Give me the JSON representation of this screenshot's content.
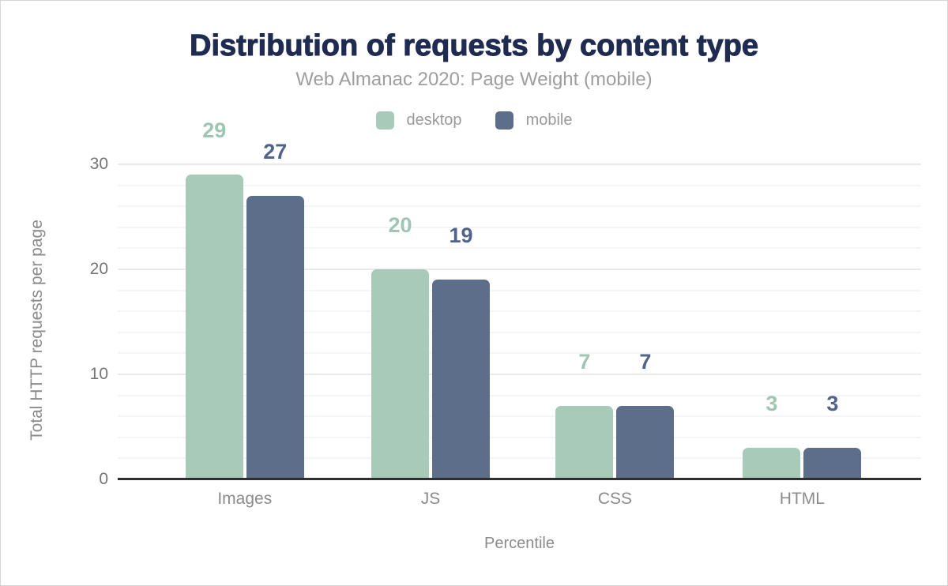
{
  "chart_data": {
    "type": "bar",
    "title": "Distribution of requests by content type",
    "subtitle": "Web Almanac 2020: Page Weight (mobile)",
    "xlabel": "Percentile",
    "ylabel": "Total HTTP requests per page",
    "categories": [
      "Images",
      "JS",
      "CSS",
      "HTML"
    ],
    "series": [
      {
        "name": "desktop",
        "color": "#a7cab9",
        "label_color": "#9ec6b2",
        "values": [
          29,
          20,
          7,
          3
        ]
      },
      {
        "name": "mobile",
        "color": "#5d6e8b",
        "label_color": "#51628b",
        "values": [
          27,
          19,
          7,
          3
        ]
      }
    ],
    "yticks": [
      0,
      10,
      20,
      30
    ],
    "ylim": [
      0,
      34.3
    ],
    "grid": {
      "minor_step": 2,
      "major_step": 10,
      "max_line": 30
    },
    "legend_position": "top"
  },
  "style": {
    "background": "#ffffff",
    "title_color": "#1f2b50",
    "subtitle_color": "#9e9e9e",
    "legend_text_color": "#9a9a9a",
    "tick_color": "#757575",
    "category_color": "#8b8b8b",
    "axis_title_color": "#8b8b8b",
    "axis_line_color": "#2f2f2f",
    "minor_grid_color": "#f5f5f5",
    "major_grid_color": "#eaeaea"
  }
}
